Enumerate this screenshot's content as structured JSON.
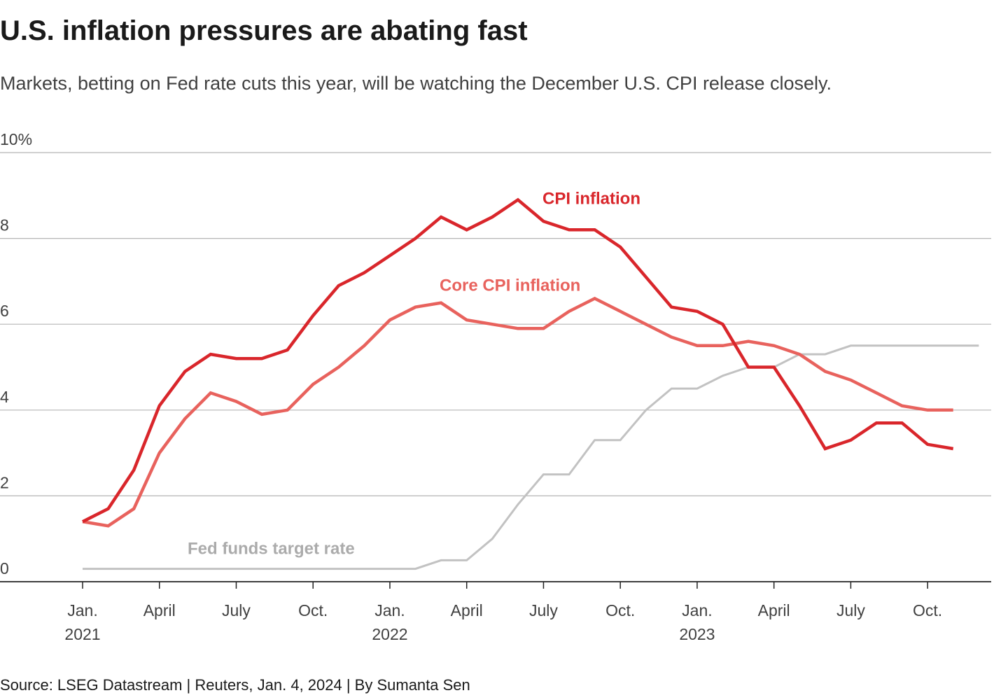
{
  "chart_data": {
    "type": "line",
    "title": "U.S. inflation pressures are abating fast",
    "subtitle": "Markets, betting on Fed rate cuts this year, will be watching the December U.S. CPI release closely.",
    "source": "Source: LSEG Datastream | Reuters, Jan. 4, 2024 | By Sumanta Sen",
    "categories": [
      "Jan. 2021",
      null,
      null,
      "April",
      null,
      null,
      "July",
      null,
      null,
      "Oct.",
      null,
      null,
      "Jan. 2022",
      null,
      null,
      "April",
      null,
      null,
      "July",
      null,
      null,
      "Oct.",
      null,
      null,
      "Jan. 2023",
      null,
      null,
      "April",
      null,
      null,
      "July",
      null,
      null,
      "Oct.",
      null,
      null
    ],
    "ylim": [
      0,
      10
    ],
    "yticks": [
      0,
      2,
      4,
      6,
      8,
      {
        "value": 10,
        "label": "10%"
      }
    ],
    "grid": true,
    "series": [
      {
        "name": "CPI inflation",
        "color": "#d9262b",
        "values": [
          1.4,
          1.7,
          2.6,
          4.1,
          4.9,
          5.3,
          5.2,
          5.2,
          5.4,
          6.2,
          6.9,
          7.2,
          7.6,
          8.0,
          8.5,
          8.2,
          8.5,
          8.9,
          8.4,
          8.2,
          8.2,
          7.8,
          7.1,
          6.4,
          6.3,
          6.0,
          5.0,
          5.0,
          4.1,
          3.1,
          3.3,
          3.7,
          3.7,
          3.2,
          3.1,
          null
        ]
      },
      {
        "name": "Core CPI inflation",
        "color": "#e8625d",
        "values": [
          1.4,
          1.3,
          1.7,
          3.0,
          3.8,
          4.4,
          4.2,
          3.9,
          4.0,
          4.6,
          5.0,
          5.5,
          6.1,
          6.4,
          6.5,
          6.1,
          6.0,
          5.9,
          5.9,
          6.3,
          6.6,
          6.3,
          6.0,
          5.7,
          5.5,
          5.5,
          5.6,
          5.5,
          5.3,
          4.9,
          4.7,
          4.4,
          4.1,
          4.0,
          4.0,
          null
        ]
      },
      {
        "name": "Fed funds target rate",
        "color": "#c2c2c2",
        "values": [
          0.3,
          0.3,
          0.3,
          0.3,
          0.3,
          0.3,
          0.3,
          0.3,
          0.3,
          0.3,
          0.3,
          0.3,
          0.3,
          0.3,
          0.5,
          0.5,
          1.0,
          1.8,
          2.5,
          2.5,
          3.3,
          3.3,
          4.0,
          4.5,
          4.5,
          4.8,
          5.0,
          5.0,
          5.3,
          5.3,
          5.5,
          5.5,
          5.5,
          5.5,
          5.5,
          5.5
        ]
      }
    ]
  }
}
